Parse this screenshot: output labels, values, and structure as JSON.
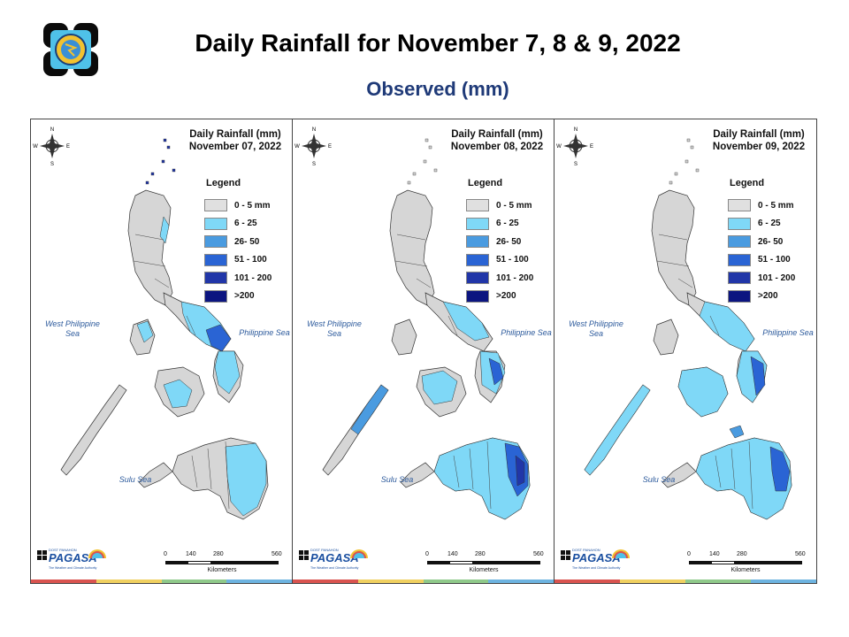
{
  "header": {
    "title": "Daily Rainfall for November 7, 8 & 9,  2022",
    "subtitle": "Observed (mm)"
  },
  "legend": {
    "title": "Legend",
    "items": [
      {
        "label": "0 - 5 mm",
        "color": "#e0e0e0"
      },
      {
        "label": "6 - 25",
        "color": "#7fd8f7"
      },
      {
        "label": "26- 50",
        "color": "#4a9be0"
      },
      {
        "label": "51 - 100",
        "color": "#2a64d4"
      },
      {
        "label": "101 - 200",
        "color": "#2136a8"
      },
      {
        "label": ">200",
        "color": "#0c1580"
      }
    ]
  },
  "panels": [
    {
      "title_line1": "Daily Rainfall (mm)",
      "title_line2": "November 07, 2022"
    },
    {
      "title_line1": "Daily Rainfall (mm)",
      "title_line2": "November 08, 2022"
    },
    {
      "title_line1": "Daily Rainfall (mm)",
      "title_line2": "November 09, 2022"
    }
  ],
  "sea_labels": {
    "west": "West Philippine Sea",
    "east": "Philippine Sea",
    "sulu": "Sulu Sea"
  },
  "compass": {
    "n": "N",
    "s": "S",
    "e": "E",
    "w": "W"
  },
  "scale_bar": {
    "ticks": [
      "0",
      "140",
      "280",
      "560"
    ],
    "unit": "Kilometers"
  },
  "logo": {
    "brand": "PAGASA",
    "prefix": "DOST PANAHON",
    "tagline": "The Weather and Climate Authority"
  },
  "strip_colors": [
    "#d9534f",
    "#f0d060",
    "#8fc98a",
    "#6db3e0"
  ]
}
